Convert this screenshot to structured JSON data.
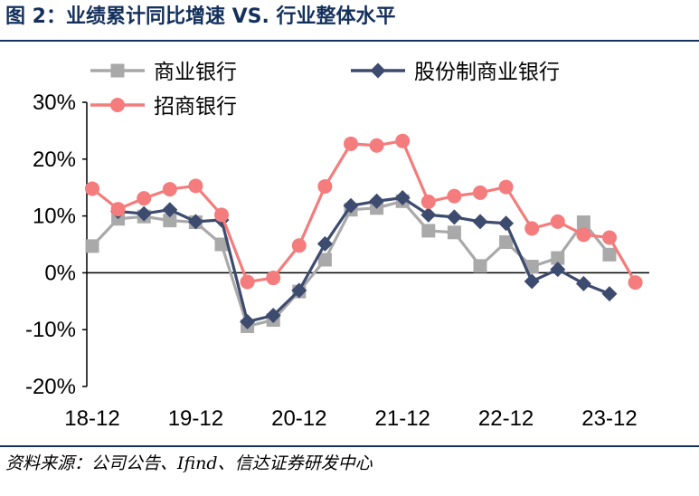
{
  "title": "图 2：业绩累计同比增速 VS. 行业整体水平",
  "source": "资料来源：公司公告、Ifind、信达证券研发中心",
  "chart_data": {
    "type": "line",
    "x_tick_labels": [
      "18-12",
      "19-12",
      "20-12",
      "21-12",
      "22-12",
      "23-12"
    ],
    "x_tick_indices": [
      0,
      4,
      8,
      12,
      16,
      20
    ],
    "y_tick_labels": [
      "30%",
      "20%",
      "10%",
      "0%",
      "-10%",
      "-20%"
    ],
    "ylim": [
      -20,
      30
    ],
    "grid": false,
    "legend_position": "top",
    "series": [
      {
        "name": "商业银行",
        "color": "#a9a9a9",
        "marker": "square",
        "values": [
          4.7,
          9.5,
          9.9,
          9.2,
          8.9,
          5.0,
          -9.4,
          -8.3,
          -3.3,
          2.3,
          11.1,
          11.4,
          12.6,
          7.4,
          7.1,
          1.2,
          5.4,
          1.1,
          2.6,
          8.9,
          3.2
        ]
      },
      {
        "name": "股份制商业银行",
        "color": "#3c4b6e",
        "marker": "diamond",
        "values": [
          null,
          10.8,
          10.4,
          11.1,
          9.0,
          9.3,
          -8.6,
          -7.5,
          -3.1,
          5.1,
          11.8,
          12.6,
          13.2,
          10.2,
          9.8,
          9.0,
          8.7,
          -1.5,
          0.6,
          -1.9,
          -3.7
        ]
      },
      {
        "name": "招商银行",
        "color": "#f47c7c",
        "marker": "circle",
        "values": [
          14.8,
          11.2,
          13.1,
          14.7,
          15.3,
          10.2,
          -1.6,
          -0.9,
          4.8,
          15.2,
          22.7,
          22.4,
          23.2,
          12.5,
          13.5,
          14.1,
          15.1,
          7.8,
          9.0,
          6.7,
          6.2,
          -1.7
        ]
      }
    ]
  }
}
